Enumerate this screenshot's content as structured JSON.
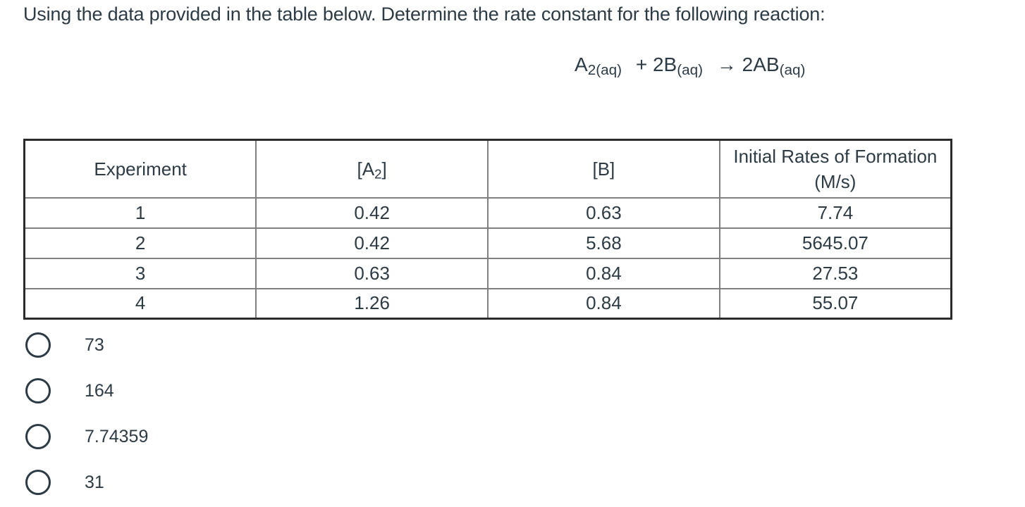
{
  "question": {
    "prompt": "Using the data provided in the table below. Determine the rate constant for the following reaction:"
  },
  "equation": {
    "parts": [
      {
        "text": "A",
        "sub": "2(aq)"
      },
      {
        "text": "+ 2B",
        "sub": "(aq)"
      },
      {
        "text": "→ 2AB",
        "sub": "(aq)"
      }
    ]
  },
  "table": {
    "headers": {
      "experiment": "Experiment",
      "a2": {
        "pre": "[A",
        "sub": "2",
        "post": "]"
      },
      "b": "[B]",
      "rates": "Initial Rates of Formation (M/s)"
    },
    "rows": [
      [
        "1",
        "0.42",
        "0.63",
        "7.74"
      ],
      [
        "2",
        "0.42",
        "5.68",
        "5645.07"
      ],
      [
        "3",
        "0.63",
        "0.84",
        "27.53"
      ],
      [
        "4",
        "1.26",
        "0.84",
        "55.07"
      ]
    ]
  },
  "options": [
    {
      "label": "73"
    },
    {
      "label": "164"
    },
    {
      "label": "7.74359"
    },
    {
      "label": "31"
    }
  ],
  "colors": {
    "text": "#2D3B45",
    "table_outer_border": "#2b2b2b",
    "table_inner_border": "#808080"
  }
}
